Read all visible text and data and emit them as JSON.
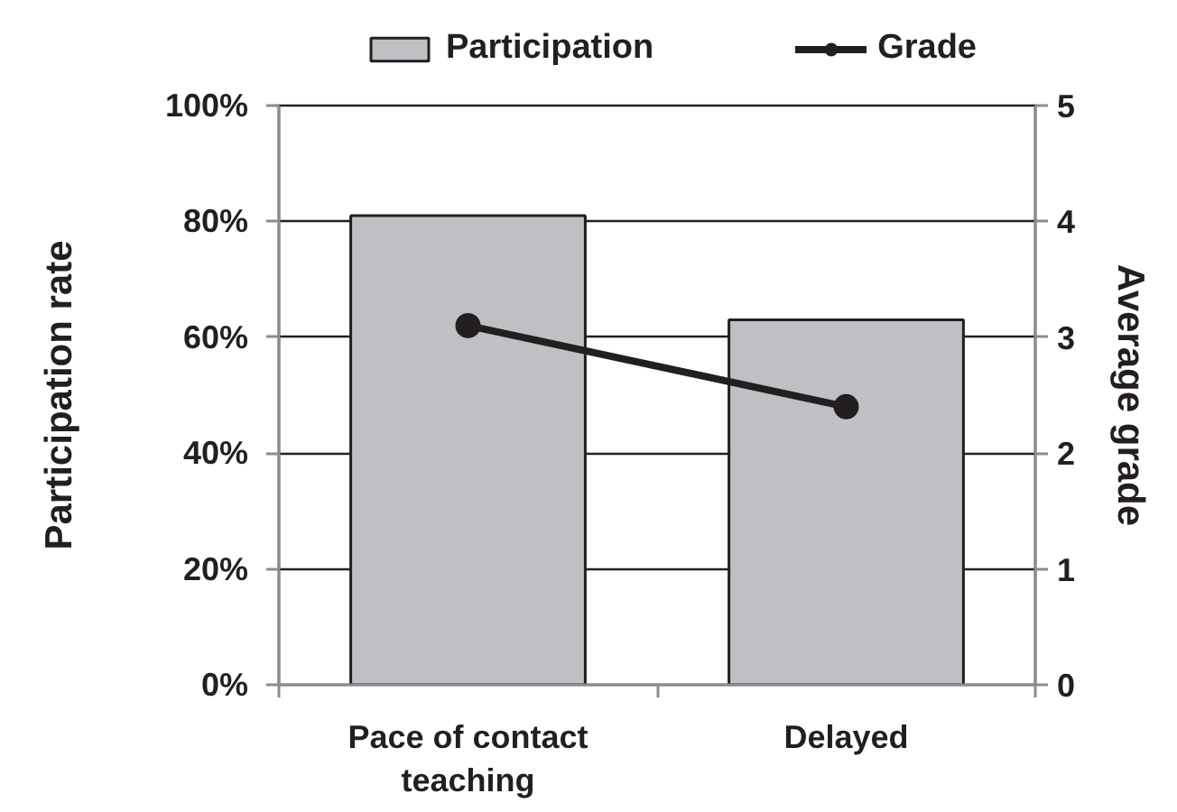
{
  "chart_data": {
    "type": "bar",
    "categories": [
      "Pace of contact teaching",
      "Delayed"
    ],
    "series": [
      {
        "name": "Participation",
        "color": "#bfc0c4",
        "values": [
          81,
          63
        ]
      },
      {
        "name": "Grade",
        "type": "line",
        "axis": "y2",
        "color": "#231f20",
        "values": [
          3.1,
          2.4
        ]
      }
    ],
    "ylabel": "Participation rate",
    "y2label": "Average grade",
    "ylim": [
      0,
      100
    ],
    "yticks": [
      {
        "value": 0,
        "label": "0%"
      },
      {
        "value": 20,
        "label": "20%"
      },
      {
        "value": 40,
        "label": "40%"
      },
      {
        "value": 60,
        "label": "60%"
      },
      {
        "value": 80,
        "label": "80%"
      },
      {
        "value": 100,
        "label": "100%"
      }
    ],
    "y2lim": [
      0,
      5
    ],
    "y2ticks": [
      0,
      1,
      2,
      3,
      4,
      5
    ],
    "grid": "y",
    "legend": "top",
    "marker": "circle",
    "line_style": "solid"
  }
}
